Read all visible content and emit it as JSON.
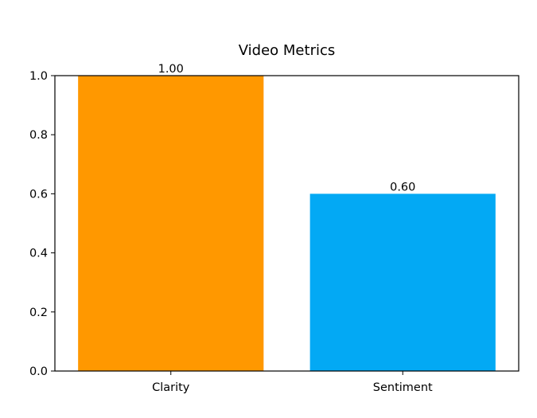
{
  "chart_data": {
    "type": "bar",
    "title": "Video Metrics",
    "xlabel": "",
    "ylabel": "",
    "categories": [
      "Clarity",
      "Sentiment"
    ],
    "values": [
      1.0,
      0.6
    ],
    "value_labels": [
      "1.00",
      "0.60"
    ],
    "colors": [
      "#ff9800",
      "#03a9f4"
    ],
    "ylim": [
      0,
      1.0
    ],
    "yticks": [
      0.0,
      0.2,
      0.4,
      0.6,
      0.8,
      1.0
    ],
    "ytick_labels": [
      "0.0",
      "0.2",
      "0.4",
      "0.6",
      "0.8",
      "1.0"
    ],
    "grid": false,
    "legend": "none"
  }
}
